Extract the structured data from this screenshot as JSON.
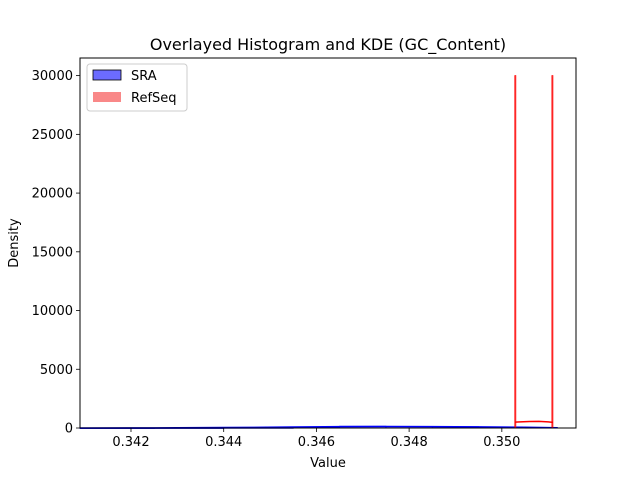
{
  "chart_data": {
    "type": "histogram",
    "title": "Overlayed Histogram and KDE (GC_Content)",
    "xlabel": "Value",
    "ylabel": "Density",
    "xlim": [
      0.3409,
      0.3516
    ],
    "ylim": [
      0,
      31500
    ],
    "xticks": [
      0.342,
      0.344,
      0.346,
      0.348,
      0.35
    ],
    "xtick_labels": [
      "0.342",
      "0.344",
      "0.346",
      "0.348",
      "0.350"
    ],
    "yticks": [
      0,
      5000,
      10000,
      15000,
      20000,
      25000,
      30000
    ],
    "ytick_labels": [
      "0",
      "5000",
      "10000",
      "15000",
      "20000",
      "25000",
      "30000"
    ],
    "legend": {
      "position": "upper-left"
    },
    "series": [
      {
        "name": "SRA",
        "kind": "histogram",
        "color": "#0000ff",
        "fill": "#6b6bff",
        "bins": [
          [
            0.3409,
            0.3425,
            3
          ],
          [
            0.3425,
            0.344,
            8
          ],
          [
            0.344,
            0.3455,
            25
          ],
          [
            0.3455,
            0.3465,
            60
          ],
          [
            0.3465,
            0.3475,
            150
          ],
          [
            0.3475,
            0.3485,
            120
          ],
          [
            0.3485,
            0.3495,
            110
          ],
          [
            0.3495,
            0.3505,
            90
          ],
          [
            0.3505,
            0.3512,
            40
          ]
        ],
        "kde": {
          "x": [
            0.3409,
            0.3425,
            0.344,
            0.3455,
            0.3465,
            0.3475,
            0.3485,
            0.3495,
            0.3505,
            0.3512
          ],
          "y": [
            5,
            15,
            40,
            80,
            120,
            130,
            120,
            100,
            60,
            20
          ]
        }
      },
      {
        "name": "RefSeq",
        "kind": "histogram",
        "color": "#ff0000",
        "fill": "#f76a6a",
        "bins": [
          [
            0.35028,
            0.3503,
            30000
          ],
          [
            0.35108,
            0.3511,
            30000
          ]
        ],
        "kde": {
          "x": [
            0.35028,
            0.3504,
            0.3506,
            0.3508,
            0.351,
            0.3511
          ],
          "y": [
            500,
            520,
            550,
            560,
            520,
            480
          ]
        }
      }
    ]
  }
}
